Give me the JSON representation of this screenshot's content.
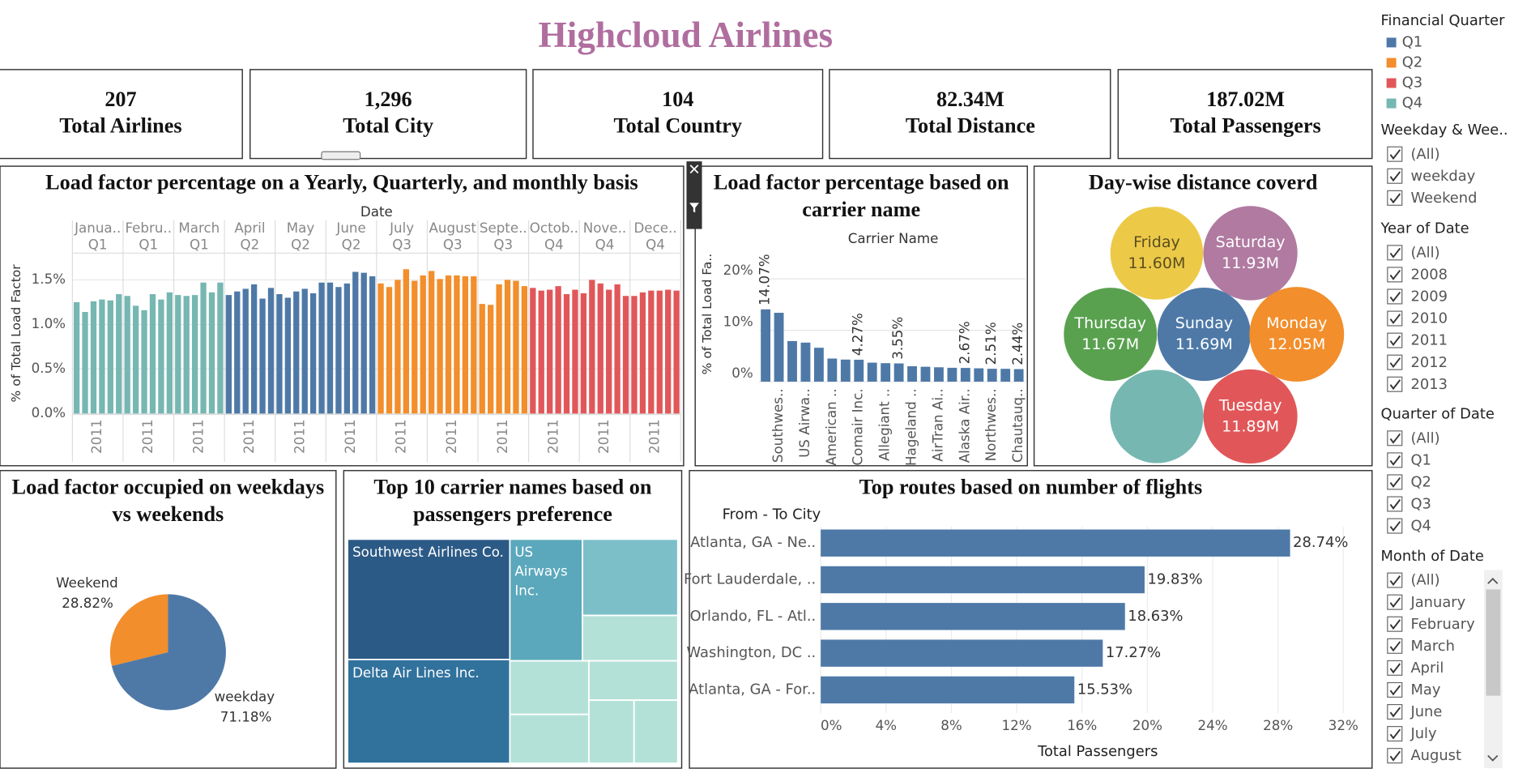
{
  "title": "Highcloud Airlines",
  "kpis": [
    {
      "value": "207",
      "label": "Total Airlines"
    },
    {
      "value": "1,296",
      "label": "Total City"
    },
    {
      "value": "104",
      "label": "Total Country"
    },
    {
      "value": "82.34M",
      "label": "Total Distance"
    },
    {
      "value": "187.02M",
      "label": "Total Passengers"
    }
  ],
  "chart_data": [
    {
      "type": "bar",
      "title": "Load factor percentage on a Yearly, Quarterly, and monthly basis",
      "x_label": "Date",
      "y_label": "% of Total Load Factor",
      "ylim": [
        0,
        1.8
      ],
      "yticks": [
        {
          "value": 0,
          "label": "0.0%"
        },
        {
          "value": 0.5,
          "label": "0.5%"
        },
        {
          "value": 1,
          "label": "1.0%"
        },
        {
          "value": 1.5,
          "label": "1.5%"
        }
      ],
      "grid": true,
      "groups": [
        {
          "name": "Janua..",
          "quarter": "Q1",
          "year": "2011",
          "color": "#76b7b2",
          "values": [
            1.25,
            1.14,
            1.26,
            1.28,
            1.27,
            1.34
          ]
        },
        {
          "name": "Febru..",
          "quarter": "Q1",
          "year": "2011",
          "color": "#76b7b2",
          "values": [
            1.32,
            1.21,
            1.16,
            1.34,
            1.28,
            1.36
          ]
        },
        {
          "name": "March",
          "quarter": "Q1",
          "year": "2011",
          "color": "#76b7b2",
          "values": [
            1.33,
            1.32,
            1.33,
            1.47,
            1.36,
            1.47
          ]
        },
        {
          "name": "April",
          "quarter": "Q2",
          "year": "2011",
          "color": "#4e79a7",
          "values": [
            1.33,
            1.37,
            1.4,
            1.45,
            1.29,
            1.41
          ]
        },
        {
          "name": "May",
          "quarter": "Q2",
          "year": "2011",
          "color": "#4e79a7",
          "values": [
            1.34,
            1.3,
            1.37,
            1.4,
            1.35,
            1.47
          ]
        },
        {
          "name": "June",
          "quarter": "Q2",
          "year": "2011",
          "color": "#4e79a7",
          "values": [
            1.47,
            1.42,
            1.46,
            1.59,
            1.58,
            1.54
          ]
        },
        {
          "name": "July",
          "quarter": "Q3",
          "year": "2011",
          "color": "#f28e2b",
          "values": [
            1.46,
            1.42,
            1.5,
            1.62,
            1.49,
            1.55
          ]
        },
        {
          "name": "August",
          "quarter": "Q3",
          "year": "2011",
          "color": "#f28e2b",
          "values": [
            1.6,
            1.51,
            1.55,
            1.55,
            1.54,
            1.54
          ]
        },
        {
          "name": "Septe..",
          "quarter": "Q3",
          "year": "2011",
          "color": "#f28e2b",
          "values": [
            1.23,
            1.22,
            1.45,
            1.5,
            1.49,
            1.43
          ]
        },
        {
          "name": "Octob..",
          "quarter": "Q4",
          "year": "2011",
          "color": "#e15759",
          "values": [
            1.41,
            1.38,
            1.39,
            1.43,
            1.34,
            1.39
          ]
        },
        {
          "name": "Nove..",
          "quarter": "Q4",
          "year": "2011",
          "color": "#e15759",
          "values": [
            1.35,
            1.5,
            1.46,
            1.39,
            1.45,
            1.32
          ]
        },
        {
          "name": "Dece..",
          "quarter": "Q4",
          "year": "2011",
          "color": "#e15759",
          "values": [
            1.32,
            1.36,
            1.38,
            1.38,
            1.39,
            1.38
          ]
        }
      ]
    },
    {
      "type": "bar",
      "title": "Load factor percentage based on carrier name",
      "x_label": "Carrier Name",
      "y_label": "% of Total Load Fa..",
      "ylim": [
        0,
        25
      ],
      "yticks": [
        {
          "value": 0,
          "label": "0%"
        },
        {
          "value": 10,
          "label": "10%"
        },
        {
          "value": 20,
          "label": "20%"
        }
      ],
      "grid": true,
      "color": "#4e79a7",
      "categories": [
        null,
        "Southwes..",
        null,
        "US Airwa..",
        null,
        "American ..",
        null,
        "Comair Inc.",
        null,
        "Allegiant ..",
        null,
        "Hageland ..",
        null,
        "AirTran Ai..",
        null,
        "Alaska Air..",
        null,
        "Northwes..",
        null,
        "Chautauq.."
      ],
      "values": [
        14.07,
        13.4,
        7.9,
        7.6,
        6.6,
        4.5,
        4.3,
        4.27,
        3.7,
        3.6,
        3.55,
        3.0,
        2.9,
        2.8,
        2.7,
        2.67,
        2.6,
        2.51,
        2.5,
        2.44
      ],
      "value_labels": [
        "14.07%",
        null,
        null,
        null,
        null,
        null,
        null,
        "4.27%",
        null,
        null,
        "3.55%",
        null,
        null,
        null,
        null,
        "2.67%",
        null,
        "2.51%",
        null,
        "2.44%"
      ]
    },
    {
      "type": "bubble",
      "title": "Day-wise distance coverd",
      "categories": [
        "Friday",
        "Saturday",
        "Thursday",
        "Sunday",
        "Monday",
        "Tuesday",
        null
      ],
      "values": [
        11.6,
        11.93,
        11.67,
        11.69,
        12.05,
        11.89,
        11.7
      ],
      "value_labels": [
        "11.60M",
        "11.93M",
        "11.67M",
        "11.69M",
        "12.05M",
        "11.89M",
        null
      ],
      "colors": [
        "#edc948",
        "#b07aa1",
        "#59a14f",
        "#4e79a7",
        "#f28e2b",
        "#e15759",
        "#76b7b2"
      ]
    },
    {
      "type": "pie",
      "title": "Load factor occupied on weekdays vs weekends",
      "categories": [
        "Weekend",
        "weekday"
      ],
      "values": [
        28.82,
        71.18
      ],
      "value_labels": [
        "28.82%",
        "71.18%"
      ],
      "colors": [
        "#f28e2b",
        "#4e79a7"
      ]
    },
    {
      "type": "treemap",
      "title": "Top 10 carrier names based on passengers preference",
      "categories": [
        "Southwest Airlines Co.",
        "Delta Air Lines Inc.",
        "US Airways Inc.",
        null,
        null,
        null,
        null,
        null,
        null,
        null
      ],
      "values": [
        21.2,
        18.3,
        9.6,
        7.9,
        4.7,
        4.6,
        4.2,
        3.8,
        3.1,
        3.0
      ],
      "colors": [
        "#2c5a86",
        "#31729d",
        "#5ba8bc",
        "#7cbfc9",
        "#b4e1d7",
        "#b4e1d7",
        "#b4e1d7",
        "#b4e1d7",
        "#b4e1d7",
        "#b4e1d7"
      ]
    },
    {
      "type": "hbar",
      "title": "Top routes based on number of flights",
      "y_label": "From - To City",
      "x_label": "Total  Passengers",
      "categories": [
        "Atlanta, GA - Ne..",
        "Fort Lauderdale, ..",
        "Orlando, FL - Atl..",
        "Washington, DC ..",
        "Atlanta, GA - For.."
      ],
      "values": [
        28.74,
        19.83,
        18.63,
        17.27,
        15.53
      ],
      "value_labels": [
        "28.74%",
        "19.83%",
        "18.63%",
        "17.27%",
        "15.53%"
      ],
      "xlim": [
        0,
        33.7
      ],
      "xticks": [
        {
          "value": 0,
          "label": "0%"
        },
        {
          "value": 4,
          "label": "4%"
        },
        {
          "value": 8,
          "label": "8%"
        },
        {
          "value": 12,
          "label": "12%"
        },
        {
          "value": 16,
          "label": "16%"
        },
        {
          "value": 20,
          "label": "20%"
        },
        {
          "value": 24,
          "label": "24%"
        },
        {
          "value": 28,
          "label": "28%"
        },
        {
          "value": 32,
          "label": "32%"
        }
      ],
      "grid": true,
      "color": "#4e79a7"
    }
  ],
  "filters": {
    "legend": {
      "title": "Financial Quarter",
      "items": [
        {
          "name": "Q1",
          "color": "#4e79a7"
        },
        {
          "name": "Q2",
          "color": "#f28e2b"
        },
        {
          "name": "Q3",
          "color": "#e15759"
        },
        {
          "name": "Q4",
          "color": "#76b7b2"
        }
      ]
    },
    "lists": [
      {
        "title": "Weekday & Wee..",
        "items": [
          "(All)",
          "weekday",
          "Weekend"
        ]
      },
      {
        "title": "Year of Date",
        "items": [
          "(All)",
          "2008",
          "2009",
          "2010",
          "2011",
          "2012",
          "2013"
        ]
      },
      {
        "title": "Quarter of Date",
        "items": [
          "(All)",
          "Q1",
          "Q2",
          "Q3",
          "Q4"
        ]
      },
      {
        "title": "Month of Date",
        "items": [
          "(All)",
          "January",
          "February",
          "March",
          "April",
          "May",
          "June",
          "July",
          "August"
        ]
      }
    ]
  }
}
